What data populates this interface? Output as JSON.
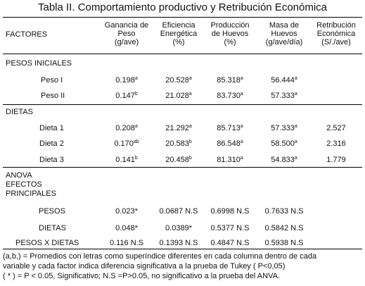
{
  "title": "Tabla II. Comportamiento productivo y Retribución Económica",
  "headers": {
    "factores": "FACTORES",
    "ganancia": [
      "Ganancia de",
      "Peso",
      "(g/ave)"
    ],
    "eficiencia": [
      "Eficiencia",
      "Energética",
      "(%)"
    ],
    "produccion": [
      "Producción",
      "de Huevos",
      "(%)"
    ],
    "masa": [
      "Masa de",
      "Huevos",
      "(g/ave/día)"
    ],
    "retribucion": [
      "Retribución",
      "Económica",
      "(S/./ave)"
    ]
  },
  "sections": {
    "pesos_iniciales": "PESOS INICIALES",
    "dietas": "DIETAS",
    "anova": [
      "ANOVA",
      "EFECTOS",
      "PRINCIPALES"
    ]
  },
  "pesos_rows": [
    {
      "label": "Peso I",
      "ganancia": "0.198",
      "g_sup": "a",
      "eficiencia": "20.528",
      "e_sup": "a",
      "produccion": "85.318",
      "p_sup": "a",
      "masa": "56.444",
      "m_sup": "a",
      "retribucion": ""
    },
    {
      "label": "Peso II",
      "ganancia": "0.147",
      "g_sup": "b",
      "eficiencia": "21.028",
      "e_sup": "a",
      "produccion": "83.730",
      "p_sup": "a",
      "masa": "57.333",
      "m_sup": "a",
      "retribucion": ""
    }
  ],
  "dieta_rows": [
    {
      "label": "Dieta 1",
      "ganancia": "0.208",
      "g_sup": "a",
      "eficiencia": "21.292",
      "e_sup": "a",
      "produccion": "85.713",
      "p_sup": "a",
      "masa": "57.333",
      "m_sup": "a",
      "retribucion": "2.527"
    },
    {
      "label": "Dieta 2",
      "ganancia": "0.170",
      "g_sup": "ab",
      "eficiencia": "20.583",
      "e_sup": "b",
      "produccion": "86.548",
      "p_sup": "a",
      "masa": "58.500",
      "m_sup": "a",
      "retribucion": "2.316"
    },
    {
      "label": "Dieta 3",
      "ganancia": "0.141",
      "g_sup": "b",
      "eficiencia": "20.458",
      "e_sup": "b",
      "produccion": "81.310",
      "p_sup": "a",
      "masa": "54.833",
      "m_sup": "a",
      "retribucion": "1.779"
    }
  ],
  "anova_rows": [
    {
      "label": "PESOS",
      "ganancia": "0.023*",
      "eficiencia": "0.0687 N.S",
      "produccion": "0.6998 N.S",
      "masa": "0.7633 N.S"
    },
    {
      "label": "DIETAS",
      "ganancia": "0.048*",
      "eficiencia": "0.0389*",
      "produccion": "0.5377 N.S",
      "masa": "0.5842 N.S"
    },
    {
      "label": "PESOS X DIETAS",
      "ganancia": "0.116 N.S",
      "eficiencia": "0.1393 N.S",
      "produccion": "0.4847 N.S",
      "masa": "0.5938 N.S"
    }
  ],
  "footnotes": [
    "(a,b,) = Promedios con letras como superíndice diferentes en cada columna dentro de cada",
    "variable y cada factor indica diferencia significativa a la prueba de Tukey ( P<0,05)",
    "( * ) = P < 0.05, Significativo; N.S =P>0.05,  no significativo a  la prueba del ANVA."
  ]
}
